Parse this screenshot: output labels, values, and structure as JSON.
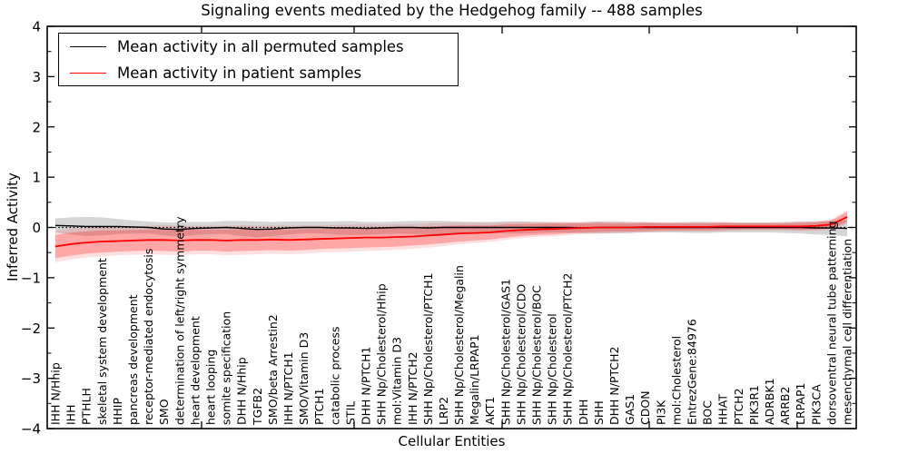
{
  "chart": {
    "title": "Signaling events mediated by the Hedgehog family -- 488 samples",
    "xlabel": "Cellular Entities",
    "ylabel": "Inferred Activity",
    "legend": [
      {
        "label": "Mean activity in all permuted samples",
        "color": "#000000"
      },
      {
        "label": "Mean activity in patient samples",
        "color": "#ff0000"
      }
    ]
  },
  "chart_data": {
    "type": "line",
    "title": "Signaling events mediated by the Hedgehog family -- 488 samples",
    "xlabel": "Cellular Entities",
    "ylabel": "Inferred Activity",
    "ylim": [
      -4,
      4
    ],
    "yticks": [
      -4,
      -3,
      -2,
      -1,
      0,
      1,
      2,
      3,
      4
    ],
    "grid": false,
    "zero_reference_line": true,
    "legend_position": "upper left",
    "categories": [
      "IHH N/Hhip",
      "IHH",
      "PTHLH",
      "skeletal system development",
      "HHIP",
      "pancreas development",
      "receptor-mediated endocytosis",
      "SMO",
      "determination of left/right symmetry",
      "heart development",
      "heart looping",
      "somite specification",
      "DHH N/Hhip",
      "TGFB2",
      "SMO/beta Arrestin2",
      "IHH N/PTCH1",
      "SMO/Vitamin D3",
      "PTCH1",
      "catabolic process",
      "STIL",
      "DHH N/PTCH1",
      "SHH Np/Cholesterol/Hhip",
      "mol:Vitamin D3",
      "IHH N/PTCH2",
      "SHH Np/Cholesterol/PTCH1",
      "LRP2",
      "SHH Np/Cholesterol/Megalin",
      "Megalin/LRPAP1",
      "AKT1",
      "SHH Np/Cholesterol/GAS1",
      "SHH Np/Cholesterol/CDO",
      "SHH Np/Cholesterol/BOC",
      "SHH Np/Cholesterol",
      "SHH Np/Cholesterol/PTCH2",
      "DHH",
      "SHH",
      "DHH N/PTCH2",
      "GAS1",
      "CDON",
      "PI3K",
      "mol:Cholesterol",
      "EntrezGene:84976",
      "BOC",
      "HHAT",
      "PTCH2",
      "PIK3R1",
      "ADRBK1",
      "ARRB2",
      "LRPAP1",
      "PIK3CA",
      "dorsoventral neural tube patterning",
      "mesenchymal cell differentiation"
    ],
    "series": [
      {
        "name": "Mean activity in all permuted samples",
        "color": "#000000",
        "values": [
          0.04,
          0.03,
          0.02,
          0.02,
          0.02,
          0.01,
          0.0,
          -0.03,
          -0.04,
          -0.02,
          -0.01,
          0.0,
          -0.02,
          -0.04,
          -0.03,
          -0.01,
          0.0,
          0.0,
          -0.01,
          -0.01,
          -0.02,
          -0.01,
          0.0,
          0.0,
          -0.01,
          0.0,
          0.0,
          0.0,
          0.0,
          0.0,
          0.0,
          0.0,
          0.0,
          0.0,
          -0.01,
          0.0,
          0.0,
          0.0,
          0.0,
          0.0,
          0.0,
          0.0,
          0.0,
          0.0,
          0.0,
          0.0,
          0.0,
          0.0,
          0.0,
          -0.01,
          -0.01,
          -0.02
        ]
      },
      {
        "name": "Mean activity in patient samples",
        "color": "#ff0000",
        "values": [
          -0.38,
          -0.33,
          -0.3,
          -0.28,
          -0.27,
          -0.26,
          -0.25,
          -0.25,
          -0.26,
          -0.25,
          -0.25,
          -0.26,
          -0.25,
          -0.25,
          -0.24,
          -0.25,
          -0.24,
          -0.23,
          -0.22,
          -0.21,
          -0.2,
          -0.2,
          -0.19,
          -0.18,
          -0.16,
          -0.14,
          -0.12,
          -0.11,
          -0.1,
          -0.07,
          -0.05,
          -0.04,
          -0.03,
          -0.02,
          -0.01,
          0.0,
          0.0,
          0.0,
          0.01,
          0.01,
          0.01,
          0.01,
          0.01,
          0.02,
          0.02,
          0.02,
          0.02,
          0.02,
          0.02,
          0.03,
          0.06,
          0.21
        ]
      }
    ],
    "bands": [
      {
        "name": "permuted-samples-spread",
        "around_series": "Mean activity in all permuted samples",
        "fill": "rgba(0,0,0,0.16)",
        "half_widths": [
          0.14,
          0.17,
          0.19,
          0.18,
          0.15,
          0.13,
          0.12,
          0.13,
          0.14,
          0.13,
          0.12,
          0.13,
          0.15,
          0.16,
          0.14,
          0.13,
          0.12,
          0.12,
          0.13,
          0.14,
          0.13,
          0.12,
          0.12,
          0.13,
          0.14,
          0.13,
          0.12,
          0.11,
          0.11,
          0.12,
          0.12,
          0.11,
          0.1,
          0.1,
          0.11,
          0.12,
          0.12,
          0.11,
          0.1,
          0.1,
          0.1,
          0.11,
          0.11,
          0.1,
          0.1,
          0.1,
          0.1,
          0.11,
          0.12,
          0.13,
          0.14,
          0.16
        ]
      },
      {
        "name": "patient-samples-spread",
        "around_series": "Mean activity in patient samples",
        "fill": "rgba(255,0,0,0.26)",
        "outer_fill": "rgba(255,0,0,0.12)",
        "outer_scale": 1.35,
        "half_widths": [
          0.23,
          0.23,
          0.22,
          0.22,
          0.21,
          0.21,
          0.21,
          0.22,
          0.22,
          0.21,
          0.21,
          0.22,
          0.22,
          0.21,
          0.21,
          0.21,
          0.21,
          0.2,
          0.2,
          0.2,
          0.2,
          0.19,
          0.19,
          0.18,
          0.18,
          0.17,
          0.16,
          0.15,
          0.14,
          0.13,
          0.12,
          0.11,
          0.11,
          0.1,
          0.09,
          0.09,
          0.08,
          0.08,
          0.08,
          0.07,
          0.07,
          0.07,
          0.07,
          0.07,
          0.06,
          0.06,
          0.06,
          0.06,
          0.07,
          0.07,
          0.08,
          0.1
        ]
      }
    ]
  }
}
